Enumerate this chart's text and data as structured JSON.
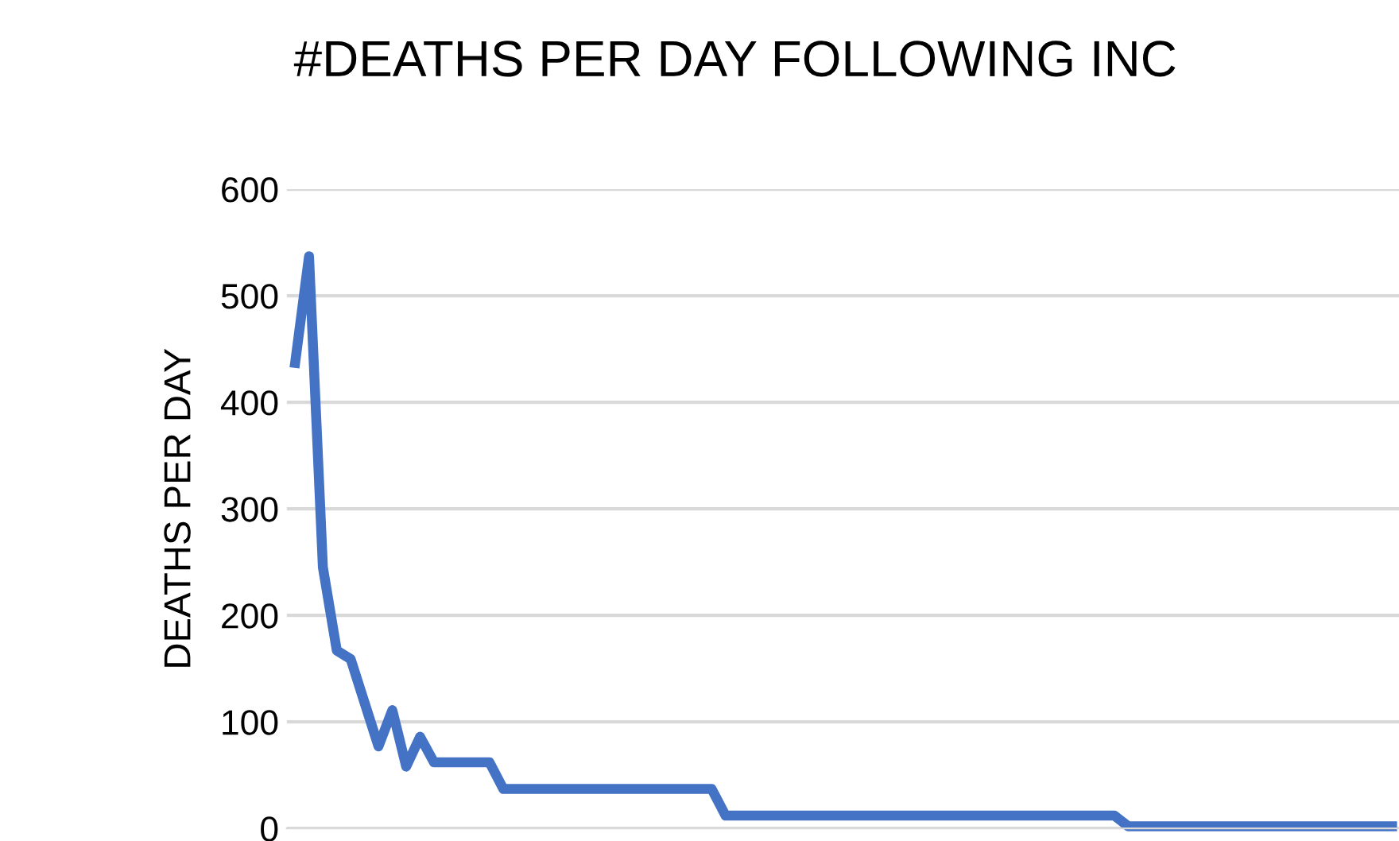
{
  "chart_data": {
    "type": "line",
    "title": "#DEATHS PER DAY FOLLOWING INC",
    "ylabel": "DEATHS PER DAY",
    "categories": [
      null,
      null,
      null,
      null,
      null,
      null,
      null,
      null,
      null,
      null,
      null,
      null,
      null,
      null,
      null,
      null,
      null,
      null,
      null,
      null,
      null,
      null,
      null,
      null,
      null,
      null,
      null,
      null,
      null,
      null,
      null,
      null,
      null,
      null,
      null,
      null,
      null,
      null,
      null,
      null,
      null,
      null,
      null,
      null,
      null,
      null,
      null,
      null,
      null,
      null,
      null,
      null,
      null,
      null,
      null,
      null,
      null,
      null,
      null,
      null,
      null,
      null,
      null,
      null,
      null,
      null,
      null,
      null,
      null,
      null,
      null,
      null,
      null,
      null,
      null,
      null,
      null,
      null,
      null,
      null
    ],
    "series": [
      {
        "color": "#4472c4",
        "values": [
          437,
          537,
          245,
          167,
          159,
          118,
          77,
          111,
          58,
          86,
          62,
          62,
          62,
          62,
          62,
          37,
          37,
          37,
          37,
          37,
          37,
          37,
          37,
          37,
          37,
          37,
          37,
          37,
          37,
          37,
          37,
          12,
          12,
          12,
          12,
          12,
          12,
          12,
          12,
          12,
          12,
          12,
          12,
          12,
          12,
          12,
          12,
          12,
          12,
          12,
          12,
          12,
          12,
          12,
          12,
          12,
          12,
          12,
          12,
          12,
          2,
          2,
          2,
          2,
          2,
          2,
          2,
          2,
          2,
          2,
          2,
          2,
          2,
          2,
          2,
          2,
          2,
          2,
          2,
          2
        ]
      }
    ],
    "ylim": [
      0,
      600
    ],
    "yticks": [
      0,
      100,
      200,
      300,
      400,
      500,
      600
    ],
    "grid": "y",
    "marker": "none",
    "line_style": "solid"
  }
}
